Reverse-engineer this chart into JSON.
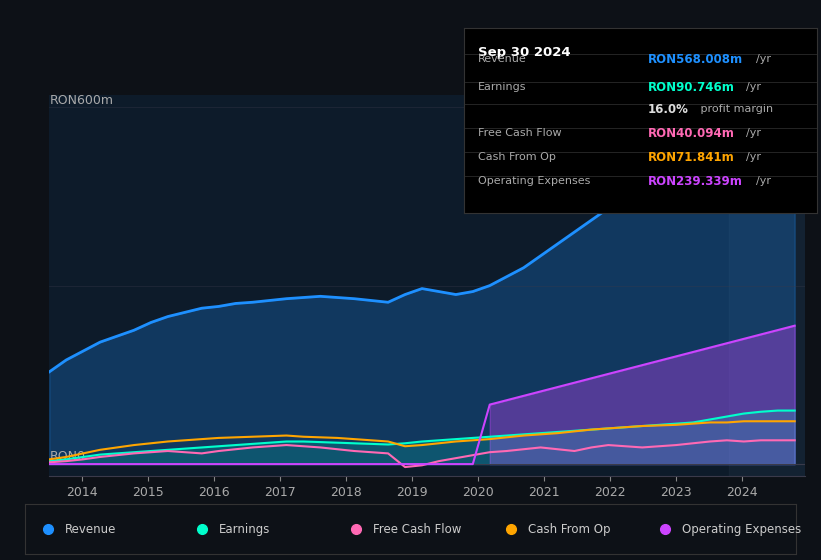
{
  "bg_color": "#0d1117",
  "plot_bg_color": "#0d1b2a",
  "title_box": {
    "date": "Sep 30 2024",
    "rows": [
      {
        "label": "Revenue",
        "value": "RON568.008m",
        "unit": "/yr",
        "color": "#00aaff"
      },
      {
        "label": "Earnings",
        "value": "RON90.746m",
        "unit": "/yr",
        "color": "#00ffcc"
      },
      {
        "label": "",
        "value": "16.0%",
        "unit": " profit margin",
        "color": "#ffffff"
      },
      {
        "label": "Free Cash Flow",
        "value": "RON40.094m",
        "unit": "/yr",
        "color": "#ff69b4"
      },
      {
        "label": "Cash From Op",
        "value": "RON71.841m",
        "unit": "/yr",
        "color": "#ffa500"
      },
      {
        "label": "Operating Expenses",
        "value": "RON239.339m",
        "unit": "/yr",
        "color": "#cc44ff"
      }
    ]
  },
  "ylabel_top": "RON600m",
  "ylabel_zero": "RON0",
  "x_labels": [
    "2014",
    "2015",
    "2016",
    "2017",
    "2018",
    "2019",
    "2020",
    "2021",
    "2022",
    "2023",
    "2024"
  ],
  "revenue": [
    155,
    195,
    235,
    255,
    265,
    270,
    280,
    320,
    290,
    340,
    430,
    500,
    570
  ],
  "earnings": [
    5,
    10,
    18,
    22,
    25,
    30,
    35,
    38,
    30,
    40,
    45,
    55,
    65,
    75,
    90
  ],
  "free_cash_flow": [
    3,
    8,
    12,
    18,
    20,
    22,
    18,
    25,
    28,
    -5,
    20,
    30,
    35,
    38,
    40
  ],
  "cash_from_op": [
    8,
    15,
    25,
    35,
    38,
    42,
    40,
    45,
    48,
    30,
    45,
    55,
    60,
    65,
    72
  ],
  "operating_expenses": [
    0,
    0,
    0,
    0,
    0,
    0,
    0,
    0,
    0,
    0,
    100,
    160,
    180,
    200,
    240
  ],
  "revenue_color": "#1e90ff",
  "earnings_color": "#00ffcc",
  "fcf_color": "#ff69b4",
  "cashop_color": "#ffa500",
  "opex_color": "#cc44ff",
  "legend": [
    {
      "label": "Revenue",
      "color": "#1e90ff"
    },
    {
      "label": "Earnings",
      "color": "#00ffcc"
    },
    {
      "label": "Free Cash Flow",
      "color": "#ff69b4"
    },
    {
      "label": "Cash From Op",
      "color": "#ffa500"
    },
    {
      "label": "Operating Expenses",
      "color": "#cc44ff"
    }
  ]
}
